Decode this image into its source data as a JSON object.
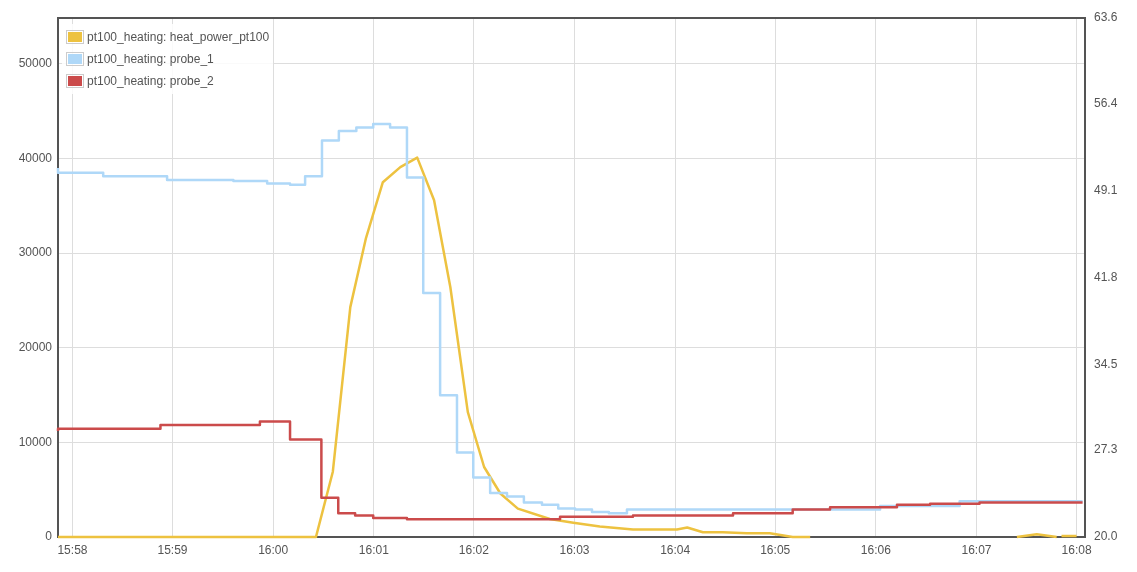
{
  "chart_data": {
    "type": "line",
    "legend": "top left",
    "grid": true,
    "marker": "none",
    "xlim": [
      15.9643,
      16.1347
    ],
    "xticks": [
      {
        "value": 15.9667,
        "label": "15:58"
      },
      {
        "value": 15.9833,
        "label": "15:59"
      },
      {
        "value": 16.0,
        "label": "16:00"
      },
      {
        "value": 16.0167,
        "label": "16:01"
      },
      {
        "value": 16.0333,
        "label": "16:02"
      },
      {
        "value": 16.05,
        "label": "16:03"
      },
      {
        "value": 16.0667,
        "label": "16:04"
      },
      {
        "value": 16.0833,
        "label": "16:05"
      },
      {
        "value": 16.1,
        "label": "16:06"
      },
      {
        "value": 16.1167,
        "label": "16:07"
      },
      {
        "value": 16.1333,
        "label": "16:08"
      }
    ],
    "ylim": [
      0,
      54860
    ],
    "yticks": [
      0,
      10000,
      20000,
      30000,
      40000,
      50000
    ],
    "y2lim": [
      20,
      63.6
    ],
    "y2ticks": [
      {
        "value": 20,
        "label": "20.0"
      },
      27.3,
      34.5,
      41.8,
      49.1,
      56.4,
      63.6
    ],
    "series": [
      {
        "name": "pt100_heating: heat_power_pt100",
        "type": "line",
        "color": "#edc240",
        "x": [
          15.9643,
          16.0071,
          16.0099,
          16.0128,
          16.0154,
          16.0182,
          16.0211,
          16.0239,
          16.0267,
          16.0294,
          16.0323,
          16.035,
          16.0377,
          16.0406,
          16.0459,
          16.0498,
          16.0542,
          16.0597,
          16.067,
          16.0687,
          16.0713,
          16.0746,
          16.0786,
          16.0824,
          16.0862,
          16.0891,
          16.09,
          16.1234,
          16.1267,
          16.13,
          16.1304,
          16.1308,
          16.1333
        ],
        "values": [
          0,
          0,
          6900,
          24300,
          31600,
          37500,
          39100,
          40100,
          35600,
          26400,
          13200,
          7400,
          4600,
          3000,
          1900,
          1500,
          1100,
          800,
          800,
          1000,
          500,
          500,
          400,
          400,
          0,
          0,
          null,
          0,
          300,
          0,
          null,
          100,
          100
        ]
      },
      {
        "name": "pt100_heating: probe_1",
        "type": "step",
        "axis": "y2",
        "color": "#afd8f8",
        "x": [
          15.9643,
          15.9718,
          15.9824,
          15.9934,
          15.999,
          16.0028,
          16.0053,
          16.0081,
          16.0109,
          16.0138,
          16.0166,
          16.0194,
          16.0222,
          16.0249,
          16.0277,
          16.0305,
          16.0332,
          16.036,
          16.0388,
          16.0416,
          16.0446,
          16.0473,
          16.0501,
          16.0529,
          16.0557,
          16.0587,
          16.1007,
          16.1139,
          16.1231,
          16.1343
        ],
        "values": [
          51.0,
          50.6,
          50.3,
          50.0,
          49.9,
          49.7,
          49.6,
          50.3,
          53.3,
          54.1,
          54.4,
          54.7,
          54.4,
          50.2,
          40.5,
          31.9,
          27.1,
          25.0,
          23.7,
          23.4,
          22.9,
          22.7,
          22.4,
          22.3,
          22.1,
          22.0,
          22.3,
          22.6,
          23.0,
          23.0
        ]
      },
      {
        "name": "pt100_heating: probe_2",
        "type": "step",
        "axis": "y2",
        "color": "#cb4b4b",
        "x": [
          15.9643,
          15.9813,
          15.9978,
          16.0028,
          16.008,
          16.0108,
          16.0136,
          16.0166,
          16.0222,
          16.0277,
          16.0476,
          16.0597,
          16.0763,
          16.0862,
          16.0924,
          16.1035,
          16.109,
          16.1172,
          16.1227,
          16.1343
        ],
        "values": [
          28.9,
          29.1,
          29.4,
          29.7,
          28.2,
          23.3,
          22.0,
          21.8,
          21.6,
          21.5,
          21.5,
          21.7,
          21.8,
          22.0,
          22.3,
          22.5,
          22.7,
          22.8,
          22.9,
          22.9
        ]
      }
    ]
  }
}
